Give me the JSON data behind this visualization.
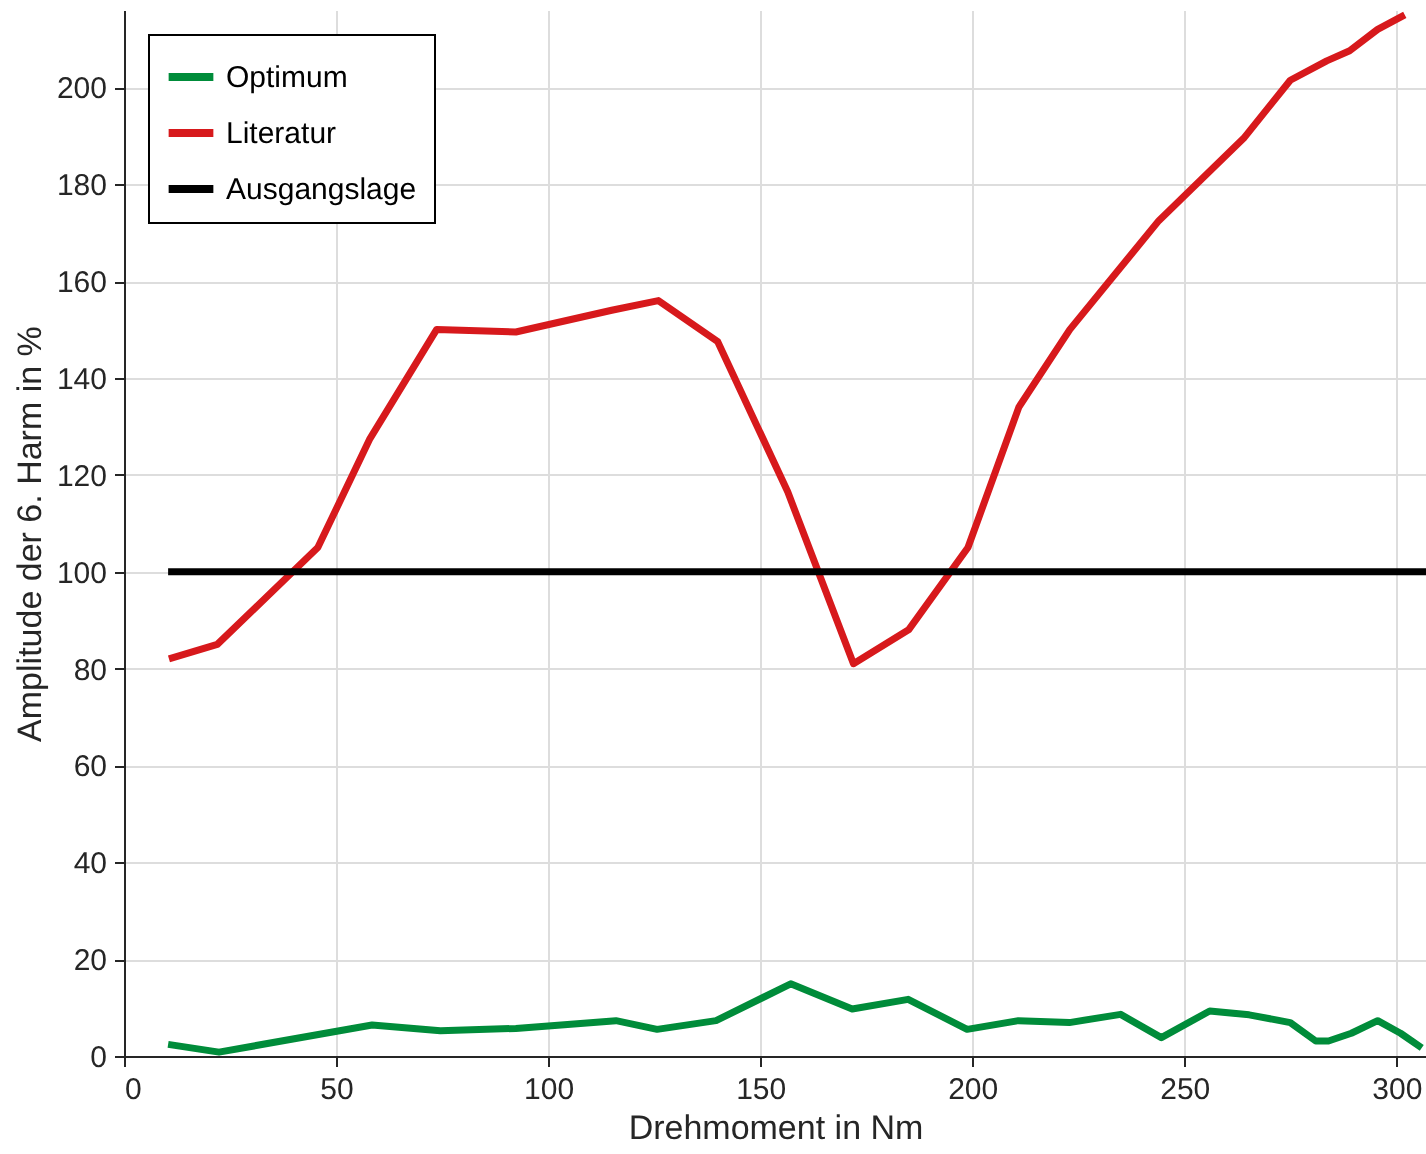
{
  "chart_data": {
    "type": "line",
    "xlabel": "Drehmoment in Nm",
    "ylabel": "Amplitude der 6. Harm in %",
    "xlim": [
      0,
      307
    ],
    "ylim": [
      0,
      216
    ],
    "xticks": [
      0,
      50,
      100,
      150,
      200,
      250,
      300
    ],
    "yticks": [
      0,
      20,
      40,
      60,
      80,
      100,
      120,
      140,
      160,
      180,
      200
    ],
    "grid": true,
    "legend": "top left",
    "line_style": "solid",
    "marker": "none",
    "series": [
      {
        "name": "Optimum",
        "color": "#008c3a",
        "x": [
          10.4,
          22.4,
          58.5,
          74.6,
          92.4,
          116,
          125.7,
          139.6,
          157.2,
          171.7,
          184.9,
          198.8,
          210.9,
          222.9,
          235,
          244.6,
          256,
          265.3,
          275,
          281,
          284,
          289.4,
          295.6,
          301,
          306
        ],
        "values": [
          2.4,
          0.8,
          6.4,
          5.2,
          5.7,
          7.3,
          5.5,
          7.3,
          14.9,
          9.7,
          11.7,
          5.5,
          7.3,
          6.9,
          8.6,
          3.8,
          9.3,
          8.5,
          6.9,
          3.1,
          3.1,
          4.7,
          7.3,
          4.7,
          1.7
        ]
      },
      {
        "name": "Literatur",
        "color": "#d7191c",
        "x": [
          10.6,
          22,
          45.7,
          58,
          73.7,
          92.4,
          115,
          126,
          140,
          156.5,
          172,
          185,
          199,
          211,
          223,
          244,
          264,
          275,
          283.6,
          289,
          295.6,
          302
        ],
        "values": [
          82,
          85,
          105,
          127.5,
          150,
          149.5,
          154,
          156,
          147.5,
          116.5,
          81,
          88,
          105,
          134,
          150,
          172.5,
          189.5,
          201.5,
          205.5,
          207.6,
          212,
          215
        ]
      },
      {
        "name": "Ausgangslage",
        "color": "#000000",
        "x": [
          10.4,
          307
        ],
        "values": [
          100,
          100
        ]
      }
    ]
  }
}
